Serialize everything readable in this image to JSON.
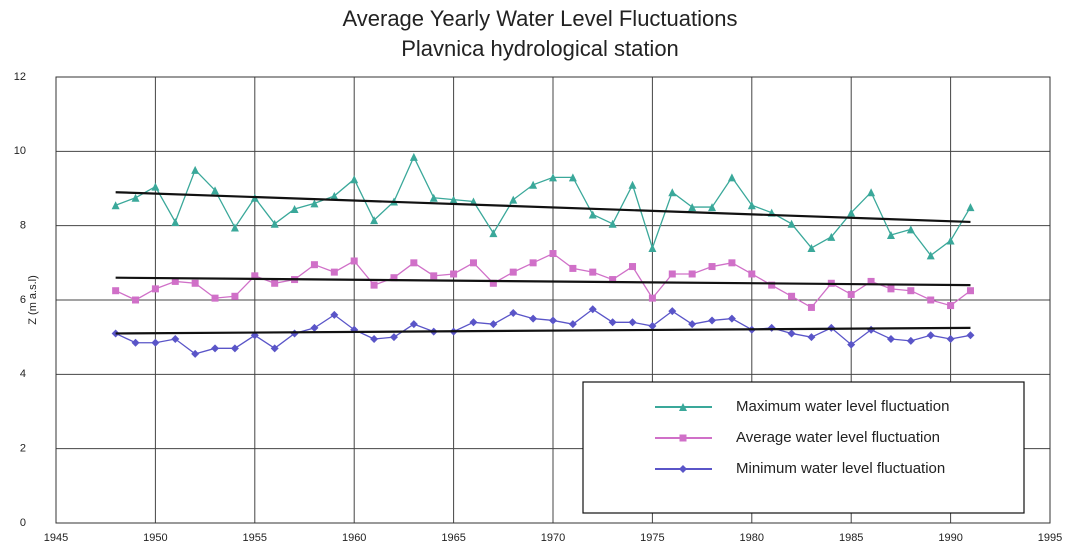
{
  "chart_data": {
    "type": "line",
    "title": [
      "Average Yearly Water Level Fluctuations",
      "Plavnica hydrological station"
    ],
    "y_label": "Z (m a.s.l)",
    "x": [
      1948,
      1949,
      1950,
      1951,
      1952,
      1953,
      1954,
      1955,
      1956,
      1957,
      1958,
      1959,
      1960,
      1961,
      1962,
      1963,
      1964,
      1965,
      1966,
      1967,
      1968,
      1969,
      1970,
      1971,
      1972,
      1973,
      1974,
      1975,
      1976,
      1977,
      1978,
      1979,
      1980,
      1981,
      1982,
      1983,
      1984,
      1985,
      1986,
      1987,
      1988,
      1989,
      1990,
      1991
    ],
    "series": [
      {
        "name": "Maximum water level fluctuation",
        "color": "#3aa89a",
        "marker": "triangle",
        "values": [
          8.55,
          8.75,
          9.05,
          8.1,
          9.5,
          8.95,
          7.95,
          8.75,
          8.05,
          8.45,
          8.6,
          8.8,
          9.25,
          8.15,
          8.65,
          9.85,
          8.75,
          8.7,
          8.65,
          7.8,
          8.7,
          9.1,
          9.3,
          9.3,
          8.3,
          8.05,
          9.1,
          7.4,
          8.9,
          8.5,
          8.5,
          9.3,
          8.55,
          8.35,
          8.05,
          7.4,
          7.7,
          8.35,
          8.9,
          7.75,
          7.9,
          7.2,
          7.6,
          8.5
        ]
      },
      {
        "name": "Average water level fluctuation",
        "color": "#d070c8",
        "marker": "square",
        "values": [
          6.25,
          6.0,
          6.3,
          6.5,
          6.45,
          6.05,
          6.1,
          6.65,
          6.45,
          6.55,
          6.95,
          6.75,
          7.05,
          6.4,
          6.6,
          7.0,
          6.65,
          6.7,
          7.0,
          6.45,
          6.75,
          7.0,
          7.25,
          6.85,
          6.75,
          6.55,
          6.9,
          6.05,
          6.7,
          6.7,
          6.9,
          7.0,
          6.7,
          6.4,
          6.1,
          5.8,
          6.45,
          6.15,
          6.5,
          6.3,
          6.25,
          6.0,
          5.85,
          6.25
        ]
      },
      {
        "name": "Minimum water level fluctuation",
        "color": "#5a55c8",
        "marker": "diamond",
        "values": [
          5.1,
          4.85,
          4.85,
          4.95,
          4.55,
          4.7,
          4.7,
          5.05,
          4.7,
          5.1,
          5.25,
          5.6,
          5.2,
          4.95,
          5.0,
          5.35,
          5.15,
          5.15,
          5.4,
          5.35,
          5.65,
          5.5,
          5.45,
          5.35,
          5.75,
          5.4,
          5.4,
          5.3,
          5.7,
          5.35,
          5.45,
          5.5,
          5.2,
          5.25,
          5.1,
          5.0,
          5.25,
          4.8,
          5.2,
          4.95,
          4.9,
          5.05,
          4.95,
          5.05
        ]
      }
    ],
    "trends": [
      {
        "color": "#111111",
        "x": [
          1948,
          1991
        ],
        "values": [
          8.9,
          8.1
        ]
      },
      {
        "color": "#111111",
        "x": [
          1948,
          1991
        ],
        "values": [
          6.6,
          6.4
        ]
      },
      {
        "color": "#111111",
        "x": [
          1948,
          1991
        ],
        "values": [
          5.1,
          5.25
        ]
      }
    ],
    "xlim": [
      1945,
      1995
    ],
    "xticks": [
      1945,
      1950,
      1955,
      1960,
      1965,
      1970,
      1975,
      1980,
      1985,
      1990,
      1995
    ],
    "ylim": [
      0,
      12
    ],
    "yticks": [
      0,
      2,
      4,
      6,
      8,
      10,
      12
    ],
    "grid": true,
    "legend": "lower right"
  }
}
